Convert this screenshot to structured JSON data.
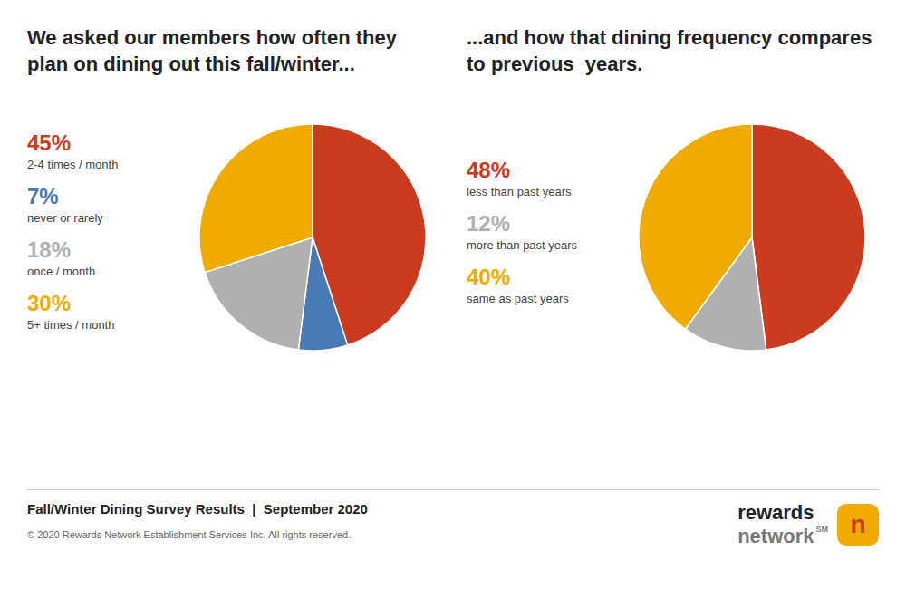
{
  "chart_data": [
    {
      "type": "pie",
      "title": "We asked our members how often they plan on dining out this fall/winter...",
      "categories": [
        "2-4 times / month",
        "never or rarely",
        "once / month",
        "5+ times / month"
      ],
      "values": [
        45,
        7,
        18,
        30
      ],
      "value_labels": [
        "45%",
        "7%",
        "18%",
        "30%"
      ],
      "colors": [
        "#cc3b1e",
        "#4a7ab5",
        "#b0b0b0",
        "#f0ab00"
      ],
      "annotations": [
        "Fall/Winter Dining Survey Results  |  September 2020",
        "© 2020 Rewards Network Establishment Services Inc. All rights reserved.",
        "rewards",
        "network",
        "SM",
        "n"
      ]
    },
    {
      "type": "pie",
      "title": "...and how that dining frequency compares to previous  years.",
      "categories": [
        "less than past years",
        "more than past years",
        "same as past years"
      ],
      "values": [
        48,
        12,
        40
      ],
      "value_labels": [
        "48%",
        "12%",
        "40%"
      ],
      "colors": [
        "#cc3b1e",
        "#b0b0b0",
        "#f0ab00"
      ]
    }
  ]
}
